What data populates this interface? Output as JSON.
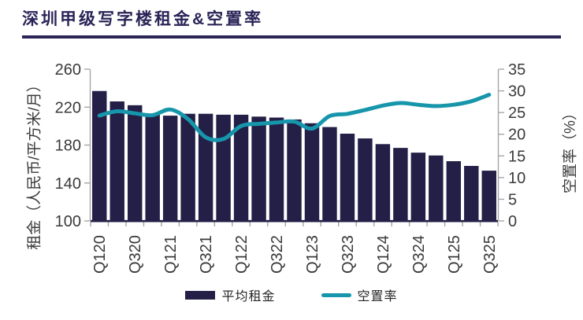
{
  "title": "深圳甲级写字楼租金&空置率",
  "colors": {
    "navy": "#231F47",
    "teal": "#1796AB",
    "title_navy": "#2A2457",
    "axis_line": "#A6A6A6",
    "axis_text": "#3A3A3A"
  },
  "chart_data": {
    "type": "bar+line combo",
    "categories": [
      "Q120",
      "Q220",
      "Q320",
      "Q420",
      "Q121",
      "Q221",
      "Q321",
      "Q421",
      "Q122",
      "Q222",
      "Q322",
      "Q422",
      "Q123",
      "Q223",
      "Q323",
      "Q423",
      "Q124",
      "Q224",
      "Q324",
      "Q424",
      "Q125",
      "Q225",
      "Q325"
    ],
    "x_labels_shown": [
      "Q120",
      "Q320",
      "Q121",
      "Q321",
      "Q122",
      "Q322",
      "Q123",
      "Q323",
      "Q124",
      "Q324",
      "Q125",
      "Q325"
    ],
    "series": [
      {
        "name": "平均租金",
        "type": "bar",
        "axis": "left",
        "color": "#231F47",
        "values": [
          237,
          226,
          222,
          213,
          211,
          213,
          213,
          212,
          212,
          210,
          209,
          207,
          203,
          199,
          192,
          187,
          181,
          177,
          172,
          169,
          163,
          158,
          153
        ]
      },
      {
        "name": "空置率",
        "type": "line",
        "axis": "right",
        "color": "#1796AB",
        "values": [
          24.3,
          25.3,
          24.8,
          24.4,
          25.7,
          23.5,
          19.3,
          18.9,
          21.9,
          22.4,
          22.7,
          22.9,
          21.3,
          24.2,
          24.7,
          25.6,
          26.6,
          27.2,
          26.8,
          26.5,
          26.8,
          27.6,
          29.1
        ]
      }
    ],
    "left_axis": {
      "title": "租金（人民币/平方米/月）",
      "min": 100,
      "max": 260,
      "ticks": [
        260,
        220,
        180,
        140,
        100
      ]
    },
    "right_axis": {
      "title": "空置率（%）",
      "min": 0,
      "max": 35,
      "ticks": [
        35,
        30,
        25,
        20,
        15,
        10,
        5,
        0
      ]
    },
    "legend": [
      {
        "label": "平均租金",
        "type": "bar"
      },
      {
        "label": "空置率",
        "type": "line"
      }
    ],
    "grid": "off",
    "legend_position": "bottom-center"
  }
}
